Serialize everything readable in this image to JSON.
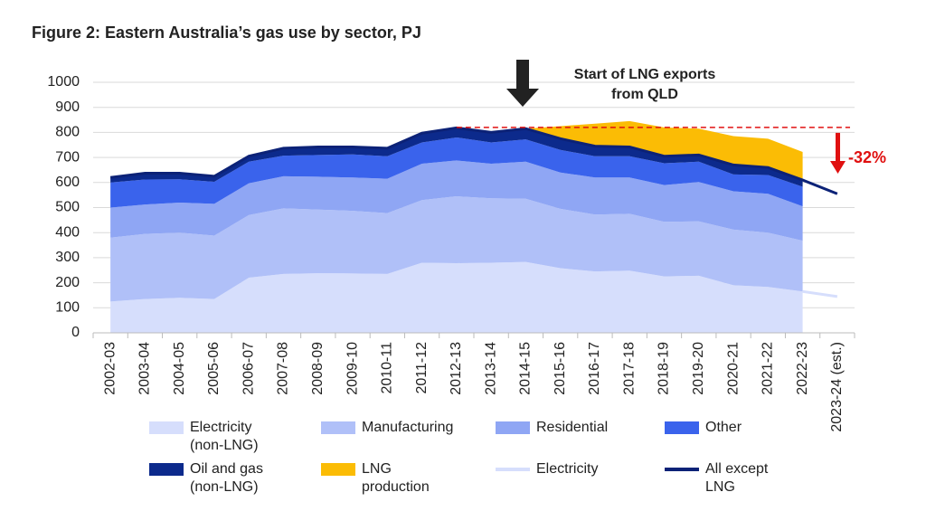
{
  "chart_data": {
    "type": "area",
    "title": "Figure 2: Eastern Australia’s gas use by sector, PJ",
    "categories": [
      "2002-03",
      "2003-04",
      "2004-05",
      "2005-06",
      "2006-07",
      "2007-08",
      "2008-09",
      "2009-10",
      "2010-11",
      "2011-12",
      "2012-13",
      "2013-14",
      "2014-15",
      "2015-16",
      "2016-17",
      "2017-18",
      "2018-19",
      "2019-20",
      "2020-21",
      "2021-22",
      "2022-23",
      "2023-24 (est.)"
    ],
    "series": [
      {
        "name": "Electricity (non-LNG)",
        "style": "area",
        "color": "#d6defc",
        "values": [
          125,
          135,
          140,
          135,
          220,
          235,
          238,
          237,
          235,
          280,
          278,
          280,
          283,
          258,
          245,
          248,
          225,
          228,
          190,
          183,
          165,
          null
        ]
      },
      {
        "name": "Manufacturing",
        "style": "area",
        "color": "#b0c0f8",
        "values": [
          255,
          260,
          260,
          253,
          250,
          262,
          254,
          250,
          243,
          250,
          267,
          257,
          252,
          237,
          227,
          227,
          218,
          217,
          222,
          217,
          203,
          null
        ]
      },
      {
        "name": "Residential",
        "style": "area",
        "color": "#8fa6f4",
        "values": [
          120,
          117,
          120,
          127,
          127,
          128,
          131,
          133,
          137,
          145,
          143,
          138,
          148,
          145,
          148,
          145,
          147,
          157,
          153,
          155,
          137,
          null
        ]
      },
      {
        "name": "Other",
        "style": "area",
        "color": "#3a63ec",
        "values": [
          100,
          100,
          93,
          88,
          86,
          82,
          87,
          92,
          90,
          85,
          92,
          85,
          89,
          90,
          85,
          85,
          87,
          81,
          67,
          75,
          78,
          null
        ]
      },
      {
        "name": "Oil and gas (non-LNG)",
        "style": "area",
        "color": "#0c2a8c",
        "values": [
          20,
          25,
          24,
          22,
          22,
          30,
          32,
          30,
          32,
          37,
          38,
          40,
          43,
          45,
          40,
          37,
          28,
          27,
          38,
          30,
          27,
          null
        ]
      },
      {
        "name": "LNG production",
        "style": "area",
        "color": "#fbbc05",
        "values": [
          0,
          0,
          0,
          0,
          0,
          0,
          0,
          0,
          0,
          0,
          0,
          0,
          0,
          50,
          90,
          103,
          115,
          105,
          115,
          115,
          112,
          null
        ]
      },
      {
        "name": "Electricity",
        "style": "line",
        "color": "#d6defc",
        "values": [
          null,
          null,
          null,
          null,
          null,
          null,
          null,
          null,
          null,
          null,
          null,
          null,
          null,
          null,
          null,
          null,
          null,
          null,
          null,
          null,
          165,
          145
        ]
      },
      {
        "name": "All except LNG",
        "style": "line",
        "color": "#0c2277",
        "values": [
          620,
          637,
          637,
          625,
          705,
          737,
          742,
          742,
          737,
          797,
          818,
          800,
          815,
          775,
          745,
          742,
          705,
          710,
          670,
          660,
          610,
          555
        ]
      }
    ],
    "ylim": [
      0,
      1000
    ],
    "yticks": [
      0,
      100,
      200,
      300,
      400,
      500,
      600,
      700,
      800,
      900,
      1000
    ],
    "grid": true,
    "reference_line": 820,
    "annotation": [
      "Start of LNG exports",
      "from QLD"
    ],
    "change_label": "-32%"
  }
}
